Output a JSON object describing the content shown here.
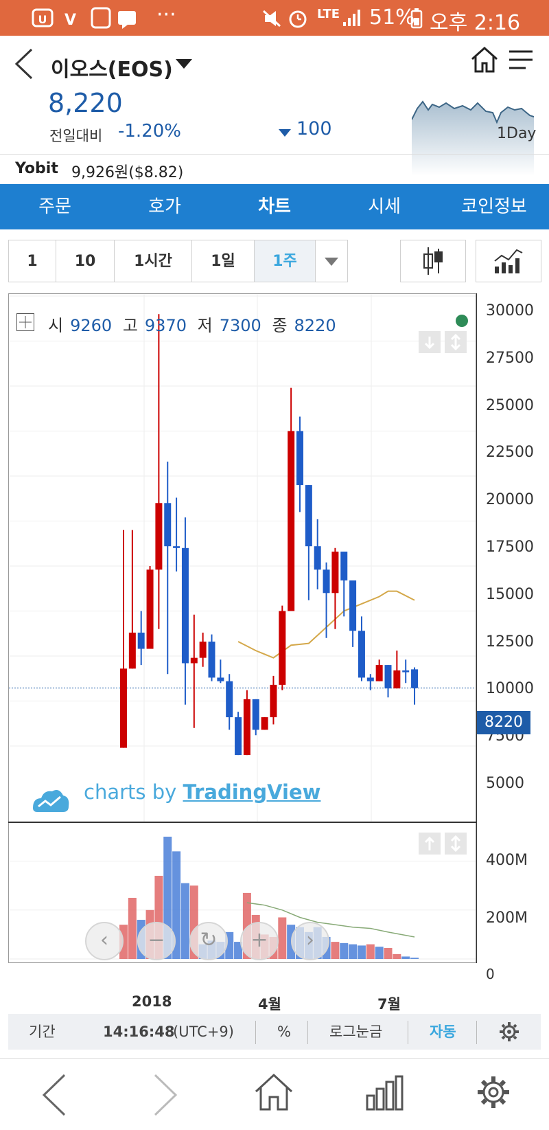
{
  "status_bar": {
    "battery": "51%",
    "time": "오후 2:16",
    "network": "LTE",
    "more": "···"
  },
  "header": {
    "coin_name": "이오스(EOS)",
    "price": "8,220",
    "change_label": "전일대비",
    "change_percent": "-1.20%",
    "change_amount": "100",
    "spark_period": "1Day"
  },
  "exchange": {
    "name": "Yobit",
    "price": "9,926원($8.82)"
  },
  "tabs": [
    "주문",
    "호가",
    "차트",
    "시세",
    "코인정보"
  ],
  "periods": [
    "1",
    "10",
    "1시간",
    "1일",
    "1주"
  ],
  "ohlc": {
    "open_label": "시",
    "open": "9260",
    "high_label": "고",
    "high": "9370",
    "low_label": "저",
    "low": "7300",
    "close_label": "종",
    "close": "8220"
  },
  "watermark": {
    "prefix": "charts by",
    "brand": "TradingView"
  },
  "tools": {
    "period_label": "기간",
    "clock": "14:16:48",
    "timezone": "(UTC+9)",
    "percent": "%",
    "log_scale": "로그눈금",
    "auto": "자동"
  },
  "colors": {
    "up": "#cc0000",
    "down": "#1e5cc8",
    "ma": "#d4a84a",
    "accent": "#1e7fd0"
  },
  "chart_data": [
    {
      "type": "candlestick",
      "y_ticks": [
        "30000",
        "27500",
        "25000",
        "22500",
        "20000",
        "17500",
        "15000",
        "12500",
        "10000",
        "7500",
        "5000"
      ],
      "ylim": [
        3000,
        30500
      ],
      "x_labels": [
        "2018",
        "4월",
        "7월"
      ],
      "last_price": "8220",
      "candles": [
        {
          "o": 4900,
          "h": 17000,
          "l": 4900,
          "c": 9300
        },
        {
          "o": 9300,
          "h": 17000,
          "l": 9300,
          "c": 11300
        },
        {
          "o": 11300,
          "h": 12500,
          "l": 9500,
          "c": 10400
        },
        {
          "o": 10400,
          "h": 15000,
          "l": 10400,
          "c": 14800
        },
        {
          "o": 14800,
          "h": 29000,
          "l": 11500,
          "c": 18500
        },
        {
          "o": 18500,
          "h": 20800,
          "l": 9000,
          "c": 16100
        },
        {
          "o": 16100,
          "h": 18800,
          "l": 14700,
          "c": 16000
        },
        {
          "o": 16000,
          "h": 17700,
          "l": 7300,
          "c": 9600
        },
        {
          "o": 9600,
          "h": 12300,
          "l": 6000,
          "c": 9900
        },
        {
          "o": 9900,
          "h": 11300,
          "l": 9400,
          "c": 10800
        },
        {
          "o": 10800,
          "h": 11200,
          "l": 8600,
          "c": 8800
        },
        {
          "o": 8800,
          "h": 9800,
          "l": 8500,
          "c": 8600
        },
        {
          "o": 8600,
          "h": 9000,
          "l": 5900,
          "c": 6600
        },
        {
          "o": 6600,
          "h": 6900,
          "l": 4500,
          "c": 4500
        },
        {
          "o": 4500,
          "h": 8100,
          "l": 4500,
          "c": 7600
        },
        {
          "o": 7600,
          "h": 7600,
          "l": 5600,
          "c": 5900
        },
        {
          "o": 5900,
          "h": 6600,
          "l": 5900,
          "c": 6600
        },
        {
          "o": 6600,
          "h": 8900,
          "l": 6200,
          "c": 8400
        },
        {
          "o": 8400,
          "h": 12800,
          "l": 8100,
          "c": 12500
        },
        {
          "o": 12500,
          "h": 24900,
          "l": 12500,
          "c": 22500
        },
        {
          "o": 22500,
          "h": 23300,
          "l": 18000,
          "c": 19500
        },
        {
          "o": 19500,
          "h": 19500,
          "l": 13100,
          "c": 16100
        },
        {
          "o": 16100,
          "h": 17600,
          "l": 13700,
          "c": 14800
        },
        {
          "o": 14800,
          "h": 15200,
          "l": 11000,
          "c": 13500
        },
        {
          "o": 13500,
          "h": 16000,
          "l": 11500,
          "c": 15800
        },
        {
          "o": 15800,
          "h": 15800,
          "l": 12200,
          "c": 14200
        },
        {
          "o": 14200,
          "h": 14200,
          "l": 10500,
          "c": 11400
        },
        {
          "o": 11400,
          "h": 12200,
          "l": 8600,
          "c": 8800
        },
        {
          "o": 8800,
          "h": 9000,
          "l": 8100,
          "c": 8600
        },
        {
          "o": 8600,
          "h": 9800,
          "l": 8600,
          "c": 9500
        },
        {
          "o": 9500,
          "h": 9500,
          "l": 7700,
          "c": 8200
        },
        {
          "o": 8200,
          "h": 10300,
          "l": 8200,
          "c": 9200
        },
        {
          "o": 9200,
          "h": 9800,
          "l": 8500,
          "c": 9100
        },
        {
          "o": 9260,
          "h": 9370,
          "l": 7300,
          "c": 8220
        }
      ],
      "moving_average": [
        {
          "i": 13,
          "v": 10800
        },
        {
          "i": 15,
          "v": 10300
        },
        {
          "i": 17,
          "v": 9900
        },
        {
          "i": 19,
          "v": 10600
        },
        {
          "i": 21,
          "v": 10700
        },
        {
          "i": 23,
          "v": 11600
        },
        {
          "i": 25,
          "v": 12500
        },
        {
          "i": 27,
          "v": 12900
        },
        {
          "i": 29,
          "v": 13300
        },
        {
          "i": 30,
          "v": 13600
        },
        {
          "i": 31,
          "v": 13600
        },
        {
          "i": 33,
          "v": 13100
        }
      ]
    },
    {
      "type": "bar",
      "title": "volume",
      "y_ticks": [
        "400M",
        "200M",
        "0"
      ],
      "ylim": [
        0,
        520
      ],
      "values": [
        140,
        250,
        160,
        200,
        340,
        500,
        440,
        310,
        300,
        60,
        75,
        70,
        110,
        70,
        270,
        180,
        100,
        90,
        170,
        140,
        130,
        110,
        130,
        90,
        70,
        65,
        60,
        55,
        60,
        50,
        45,
        20,
        10,
        5
      ],
      "up": [
        1,
        1,
        0,
        1,
        1,
        0,
        0,
        0,
        1,
        0,
        0,
        0,
        0,
        0,
        1,
        1,
        1,
        1,
        1,
        0,
        0,
        0,
        0,
        0,
        1,
        0,
        0,
        0,
        1,
        0,
        1,
        1,
        0,
        0
      ],
      "moving_average": [
        {
          "i": 14,
          "v": 230
        },
        {
          "i": 16,
          "v": 220
        },
        {
          "i": 18,
          "v": 200
        },
        {
          "i": 20,
          "v": 170
        },
        {
          "i": 22,
          "v": 150
        },
        {
          "i": 24,
          "v": 140
        },
        {
          "i": 26,
          "v": 130
        },
        {
          "i": 28,
          "v": 125
        },
        {
          "i": 30,
          "v": 110
        },
        {
          "i": 33,
          "v": 90
        }
      ]
    }
  ]
}
